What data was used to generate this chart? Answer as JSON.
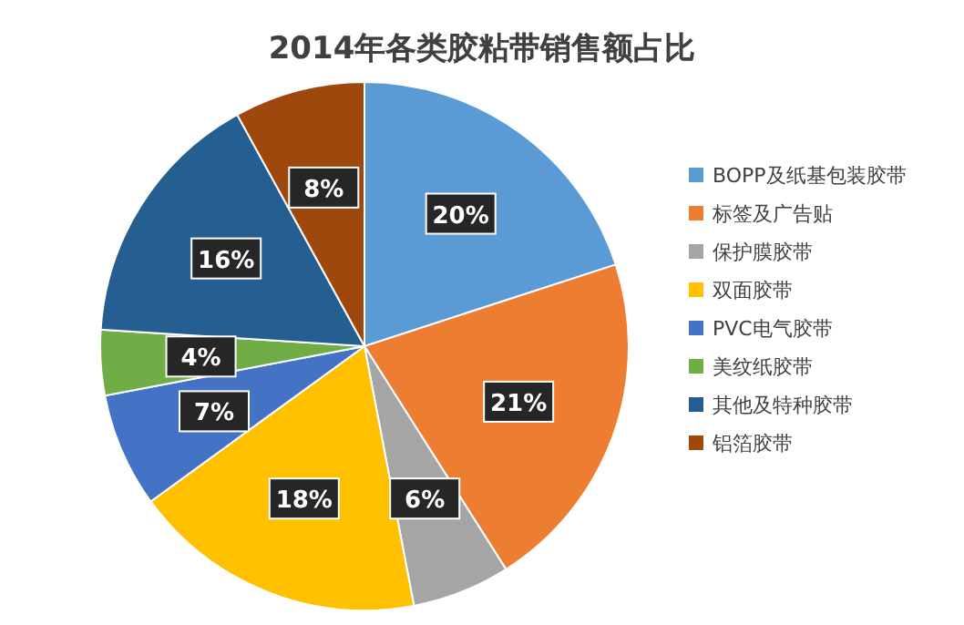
{
  "chart_data": {
    "type": "pie",
    "title": "2014年各类胶粘带销售额占比",
    "categories": [
      "BOPP及纸基包装胶带",
      "标签及广告贴",
      "保护膜胶带",
      "双面胶带",
      "PVC电气胶带",
      "美纹纸胶带",
      "其他及特种胶带",
      "铝箔胶带"
    ],
    "values": [
      20,
      21,
      6,
      18,
      7,
      4,
      16,
      8
    ],
    "colors": [
      "#5b9bd5",
      "#ed7d31",
      "#a5a5a5",
      "#ffc000",
      "#4472c4",
      "#70ad47",
      "#255e91",
      "#9e480e"
    ],
    "value_labels": [
      "20%",
      "21%",
      "6%",
      "18%",
      "7%",
      "4%",
      "16%",
      "8%"
    ],
    "legend": "right"
  }
}
